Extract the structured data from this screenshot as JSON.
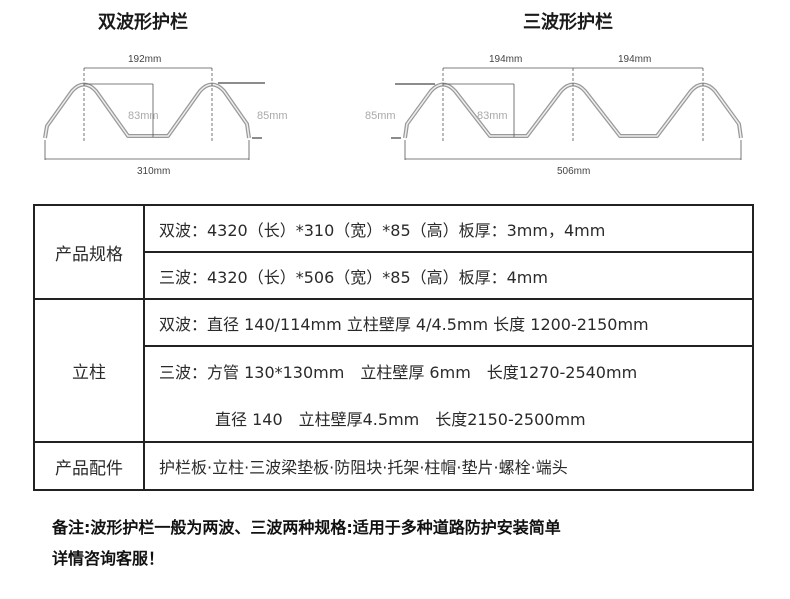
{
  "diagrams": {
    "double": {
      "title": "双波形护栏",
      "pitch": "192mm",
      "depth": "83mm",
      "height": "85mm",
      "width": "310mm"
    },
    "triple": {
      "title": "三波形护栏",
      "pitch1": "194mm",
      "pitch2": "194mm",
      "depth": "83mm",
      "height": "85mm",
      "width": "506mm"
    }
  },
  "table": {
    "spec": {
      "label": "产品规格",
      "rows": [
        "双波：4320（长）*310（宽）*85（高）板厚：3mm，4mm",
        "三波：4320（长）*506（宽）*85（高）板厚：4mm"
      ]
    },
    "post": {
      "label": "立柱",
      "rows": [
        "双波：直径 140/114mm 立柱壁厚 4/4.5mm 长度 1200-2150mm",
        "三波：方管 130*130mm　立柱壁厚 6mm　长度1270-2540mm",
        "直径 140　立柱壁厚4.5mm　长度2150-2500mm"
      ]
    },
    "parts": {
      "label": "产品配件",
      "value": "护栏板·立柱·三波梁垫板·防阻块·托架·柱帽·垫片·螺栓·端头"
    }
  },
  "note": {
    "line1": "备注:波形护栏一般为两波、三波两种规格:适用于多种道路防护安装简单",
    "line2": "详情咨询客服！"
  }
}
